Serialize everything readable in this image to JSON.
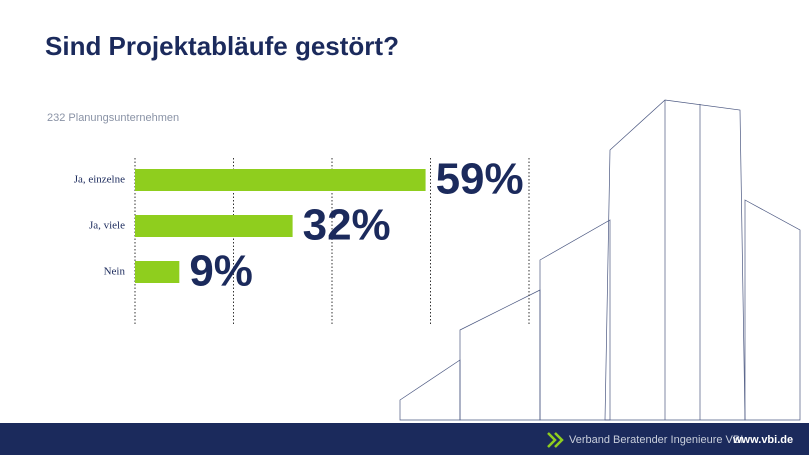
{
  "chart_data": {
    "type": "bar",
    "orientation": "horizontal",
    "title": "Sind Projektabläufe gestört?",
    "subtitle": "232 Planungsunternehmen",
    "categories": [
      "Ja, einzelne",
      "Ja, viele",
      "Nein"
    ],
    "values": [
      59,
      32,
      9
    ],
    "value_labels": [
      "59%",
      "32%",
      "9%"
    ],
    "color": "#8fce1e",
    "xlim": [
      0,
      80
    ],
    "xticks": [
      0,
      20,
      40,
      60,
      80
    ],
    "grid": true
  },
  "footer": {
    "organization": "Verband Beratender Ingenieure VBI",
    "website": "www.vbi.de"
  }
}
